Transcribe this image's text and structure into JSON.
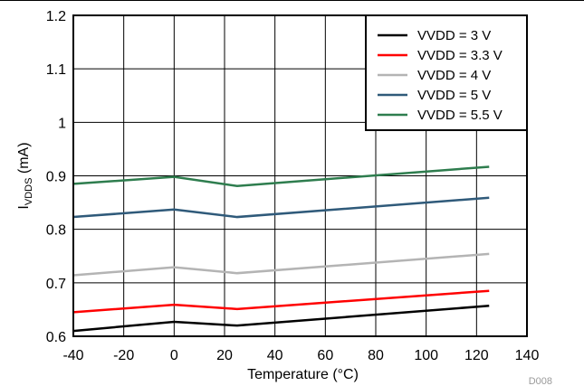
{
  "figure_id": "D008",
  "chart_data": {
    "type": "line",
    "title": "",
    "xlabel": "Temperature (°C)",
    "ylabel": {
      "main": "I",
      "sub": "VDDS",
      "unit": " (mA)"
    },
    "xlim": [
      -40,
      140
    ],
    "ylim": [
      0.6,
      1.2
    ],
    "xticks": [
      "-40",
      "-20",
      "0",
      "20",
      "40",
      "60",
      "80",
      "100",
      "120",
      "140"
    ],
    "yticks": [
      "0.6",
      "0.7",
      "0.8",
      "0.9",
      "1",
      "1.1",
      "1.2"
    ],
    "xtick_values": [
      -40,
      -20,
      0,
      20,
      40,
      60,
      80,
      100,
      120,
      140
    ],
    "ytick_values": [
      0.6,
      0.7,
      0.8,
      0.9,
      1.0,
      1.1,
      1.2
    ],
    "grid": true,
    "legend_position": "top-right",
    "series": [
      {
        "name": "VVDD = 3 V",
        "color": "#000000",
        "x": [
          -40,
          0,
          25,
          125
        ],
        "y": [
          0.61,
          0.627,
          0.62,
          0.657
        ]
      },
      {
        "name": "VVDD = 3.3 V",
        "color": "#ff0000",
        "x": [
          -40,
          0,
          25,
          125
        ],
        "y": [
          0.645,
          0.659,
          0.651,
          0.685
        ]
      },
      {
        "name": "VVDD = 4 V",
        "color": "#b4b4b4",
        "x": [
          -40,
          0,
          25,
          125
        ],
        "y": [
          0.714,
          0.729,
          0.718,
          0.754
        ]
      },
      {
        "name": "VVDD = 5 V",
        "color": "#2f5a7a",
        "x": [
          -40,
          0,
          25,
          125
        ],
        "y": [
          0.823,
          0.837,
          0.823,
          0.859
        ]
      },
      {
        "name": "VVDD = 5.5 V",
        "color": "#2e7d4e",
        "x": [
          -40,
          0,
          25,
          125
        ],
        "y": [
          0.885,
          0.898,
          0.881,
          0.917
        ]
      }
    ]
  }
}
